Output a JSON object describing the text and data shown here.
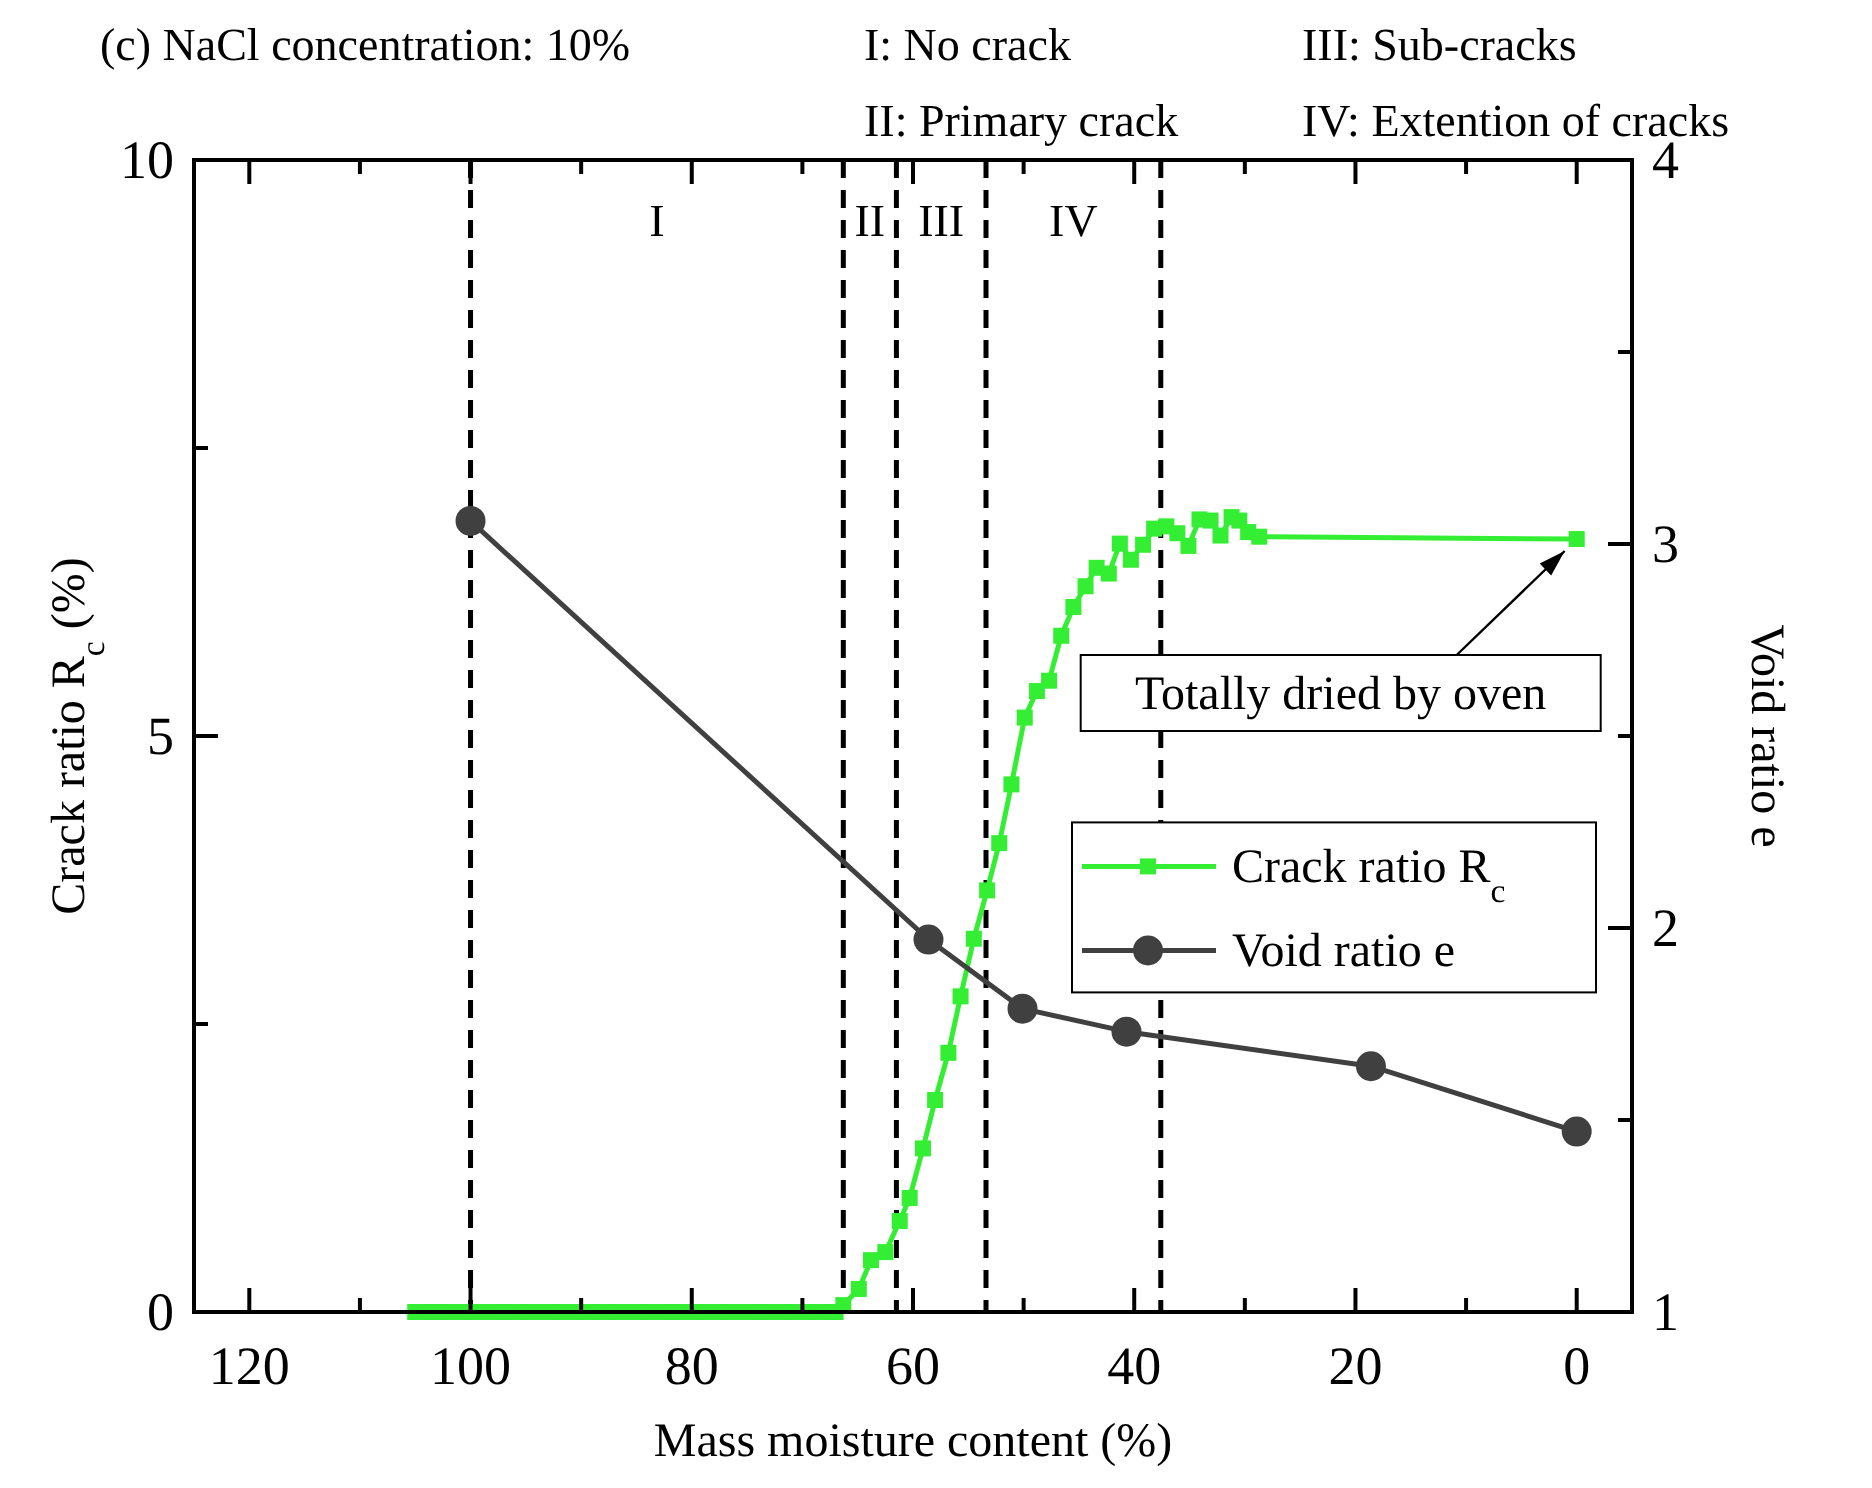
{
  "chart_data": {
    "type": "line",
    "title": "(c) NaCl concentration: 10%",
    "xlabel": "Mass moisture content (%)",
    "ylabel": "Crack ratio R$_{c}$ (%)",
    "y2label": "Void ratio e",
    "xlim": [
      125,
      -5
    ],
    "xticks": [
      120,
      {
        "value": 110,
        "label": null
      },
      100,
      {
        "value": 90,
        "label": null
      },
      80,
      {
        "value": 70,
        "label": null
      },
      60,
      {
        "value": 50,
        "label": null
      },
      40,
      {
        "value": 30,
        "label": null
      },
      20,
      {
        "value": 10,
        "label": null
      },
      0
    ],
    "ylim": [
      0,
      10
    ],
    "yticks": [
      0,
      {
        "value": 2.5,
        "label": null
      },
      5,
      {
        "value": 7.5,
        "label": null
      },
      10
    ],
    "y2lim": [
      1,
      4
    ],
    "y2ticks": [
      1,
      {
        "value": 1.5,
        "label": null
      },
      2,
      {
        "value": 2.5,
        "label": null
      },
      3,
      {
        "value": 3.5,
        "label": null
      },
      4
    ],
    "grid": false,
    "legend": "right",
    "series": [
      {
        "name": "Crack ratio R$_{c}$",
        "color": "#33ee33",
        "marker": "square",
        "x": [
          105,
          104,
          103,
          102,
          101,
          100,
          99,
          98,
          97,
          96,
          95,
          94,
          93,
          92,
          91,
          90,
          89,
          88,
          87,
          86,
          85,
          84,
          83,
          82,
          81,
          80,
          79,
          78,
          77,
          76,
          75,
          74,
          73,
          72,
          71,
          70,
          69,
          68,
          67,
          66.3,
          64.9,
          63.8,
          62.5,
          61.2,
          60.3,
          59.1,
          58.0,
          56.8,
          55.7,
          54.5,
          53.3,
          52.2,
          51.1,
          49.9,
          48.8,
          47.7,
          46.6,
          45.5,
          44.4,
          43.4,
          42.3,
          41.3,
          40.3,
          39.2,
          38.2,
          37.1,
          36.1,
          35.1,
          34.1,
          33.1,
          32.2,
          31.2,
          30.5,
          29.7,
          28.7,
          0
        ],
        "values": [
          0,
          0,
          0,
          0,
          0,
          0,
          0,
          0,
          0,
          0,
          0,
          0,
          0,
          0,
          0,
          0,
          0,
          0,
          0,
          0,
          0,
          0,
          0,
          0,
          0,
          0,
          0,
          0,
          0,
          0,
          0,
          0,
          0,
          0,
          0,
          0,
          0,
          0,
          0,
          0.06,
          0.2,
          0.45,
          0.52,
          0.79,
          0.99,
          1.42,
          1.84,
          2.25,
          2.74,
          3.24,
          3.66,
          4.07,
          4.58,
          5.16,
          5.39,
          5.48,
          5.87,
          6.12,
          6.3,
          6.46,
          6.41,
          6.67,
          6.53,
          6.66,
          6.8,
          6.82,
          6.76,
          6.65,
          6.88,
          6.87,
          6.74,
          6.9,
          6.87,
          6.77,
          6.73,
          6.71
        ]
      },
      {
        "name": "Void ratio e",
        "color": "#404040",
        "marker": "circle",
        "axis": "y2",
        "x": [
          100,
          58.6,
          50.1,
          40.7,
          18.6,
          0
        ],
        "values": [
          3.06,
          1.97,
          1.79,
          1.73,
          1.64,
          1.47
        ]
      }
    ],
    "ref_lines": [
      {
        "axis": "x",
        "value": 100,
        "color": "#000000",
        "line_style": "dashed"
      },
      {
        "axis": "x",
        "value": 66.3,
        "color": "#000000",
        "line_style": "dashed"
      },
      {
        "axis": "x",
        "value": 61.5,
        "color": "#000000",
        "line_style": "dashed"
      },
      {
        "axis": "x",
        "value": 53.4,
        "color": "#000000",
        "line_style": "dashed"
      },
      {
        "axis": "x",
        "value": 37.6,
        "color": "#000000",
        "line_style": "dashed"
      }
    ],
    "annotations": [
      "I: No crack",
      "II: Primary crack",
      "III: Sub-cracks",
      "IV: Extention of cracks",
      "I",
      "II",
      "III",
      "IV",
      {
        "text": "Totally dried by oven",
        "x": 0,
        "y": 6.71
      }
    ]
  }
}
